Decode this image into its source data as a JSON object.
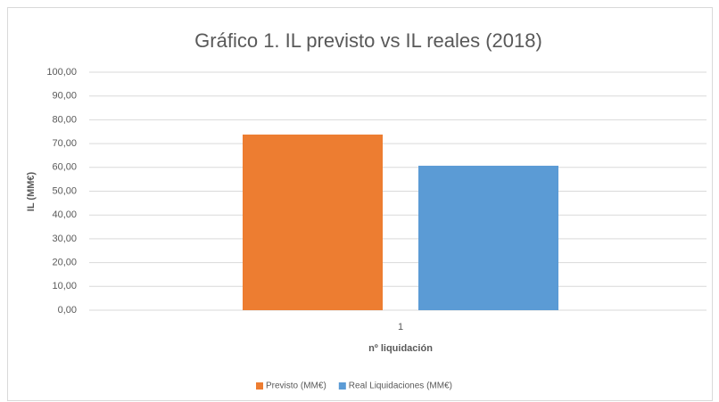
{
  "chart_data": {
    "type": "bar",
    "title": "Gráfico 1. IL previsto vs IL reales (2018)",
    "x_label": "nº liquidación",
    "y_label": "IL (MM€)",
    "categories": [
      "1"
    ],
    "series": [
      {
        "name": "Previsto (MM€)",
        "color": "#ed7d31",
        "values": [
          73.8
        ]
      },
      {
        "name": "Real Liquidaciones (MM€)",
        "color": "#5b9bd5",
        "values": [
          60.7
        ]
      }
    ],
    "ylim": [
      0,
      100
    ],
    "yticks": [
      {
        "value": 0,
        "label": "0,00"
      },
      {
        "value": 10,
        "label": "10,00"
      },
      {
        "value": 20,
        "label": "20,00"
      },
      {
        "value": 30,
        "label": "30,00"
      },
      {
        "value": 40,
        "label": "40,00"
      },
      {
        "value": 50,
        "label": "50,00"
      },
      {
        "value": 60,
        "label": "60,00"
      },
      {
        "value": 70,
        "label": "70,00"
      },
      {
        "value": 80,
        "label": "80,00"
      },
      {
        "value": 90,
        "label": "90,00"
      },
      {
        "value": 100,
        "label": "100,00"
      }
    ],
    "grid": true,
    "legend": "bottom"
  }
}
